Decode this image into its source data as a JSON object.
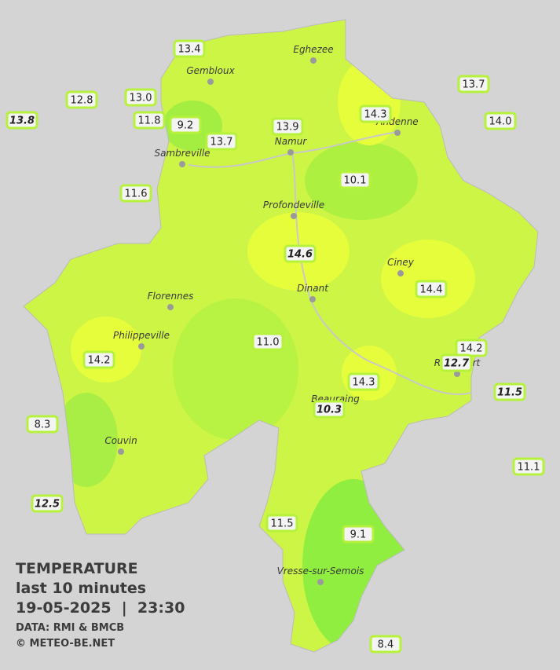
{
  "legend": {
    "title": "TEMPERATURE",
    "period": "last 10 minutes",
    "datetime": "19-05-2025  |  23:30",
    "source": "DATA: RMI & BMCB",
    "credit": "© METEO-BE.NET"
  },
  "cities": [
    "Eghezee",
    "Gembloux",
    "Andenne",
    "Namur",
    "Sambreville",
    "Profondeville",
    "Ciney",
    "Dinant",
    "Florennes",
    "Philippeville",
    "Rochefort",
    "Beauraing",
    "Couvin",
    "Vresse-sur-Semois"
  ],
  "stations": [
    {
      "value": "13.4"
    },
    {
      "value": "12.8"
    },
    {
      "value": "13.0"
    },
    {
      "value": "13.8",
      "italic": true
    },
    {
      "value": "11.8"
    },
    {
      "value": "9.2"
    },
    {
      "value": "13.7"
    },
    {
      "value": "13.9"
    },
    {
      "value": "14.3"
    },
    {
      "value": "13.7"
    },
    {
      "value": "14.0"
    },
    {
      "value": "11.6"
    },
    {
      "value": "10.1"
    },
    {
      "value": "14.6",
      "italic": true
    },
    {
      "value": "14.4"
    },
    {
      "value": "11.0"
    },
    {
      "value": "14.2"
    },
    {
      "value": "14.2"
    },
    {
      "value": "12.7",
      "italic": true
    },
    {
      "value": "14.3"
    },
    {
      "value": "11.5",
      "italic": true
    },
    {
      "value": "10.3",
      "italic": true
    },
    {
      "value": "8.3"
    },
    {
      "value": "11.1"
    },
    {
      "value": "12.5",
      "italic": true
    },
    {
      "value": "11.5"
    },
    {
      "value": "9.1"
    },
    {
      "value": "8.4"
    }
  ]
}
